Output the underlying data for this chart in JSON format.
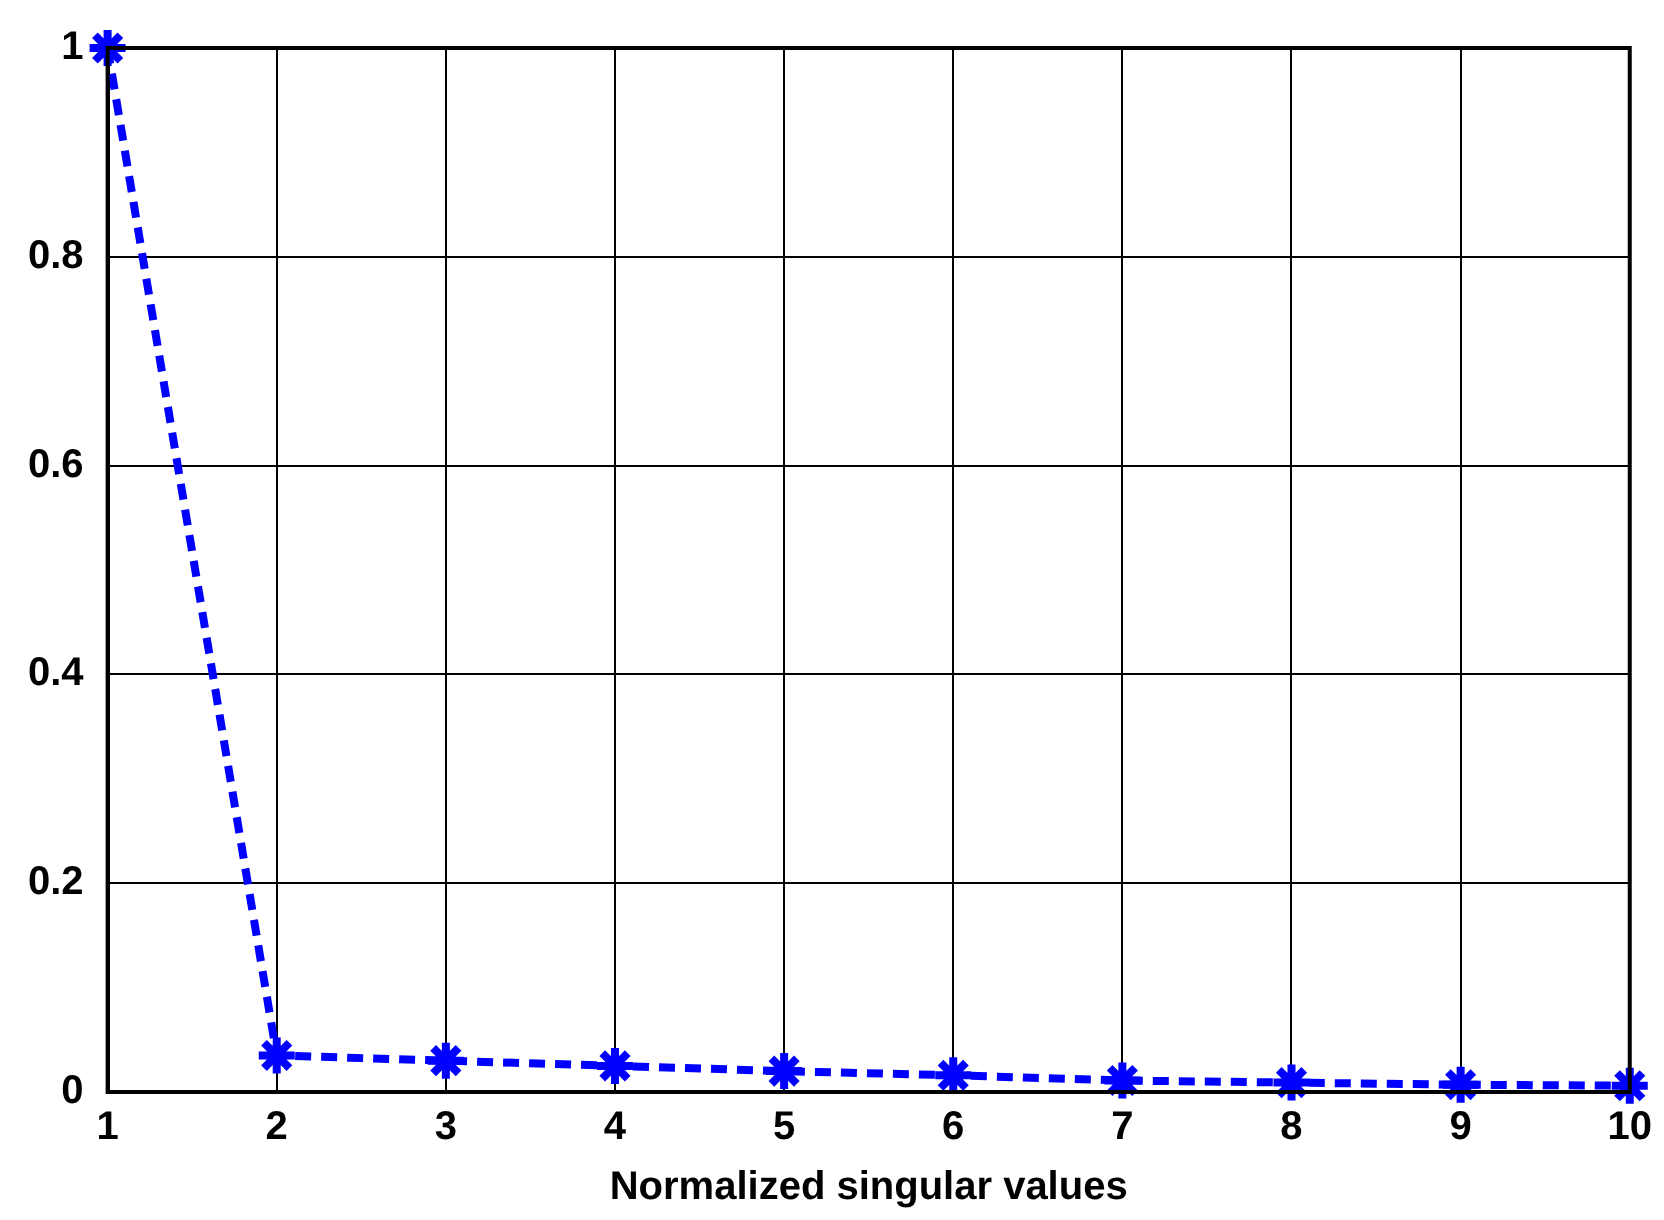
{
  "chart_data": {
    "type": "line",
    "xlabel": "Normalized singular values",
    "x": [
      1,
      2,
      3,
      4,
      5,
      6,
      7,
      8,
      9,
      10
    ],
    "series": [
      {
        "color": "#0000ff",
        "values": [
          1,
          0.035,
          0.03,
          0.025,
          0.02,
          0.016,
          0.011,
          0.009,
          0.007,
          0.006
        ]
      }
    ],
    "xlim": [
      1,
      10
    ],
    "xticks": [
      1,
      2,
      3,
      4,
      5,
      6,
      7,
      8,
      9,
      10
    ],
    "ylim": [
      0,
      1
    ],
    "yticks": [
      0,
      0.2,
      0.4,
      0.6,
      0.8,
      1
    ],
    "grid": true,
    "marker": "cross",
    "line_style": "dashed",
    "legend": false
  }
}
